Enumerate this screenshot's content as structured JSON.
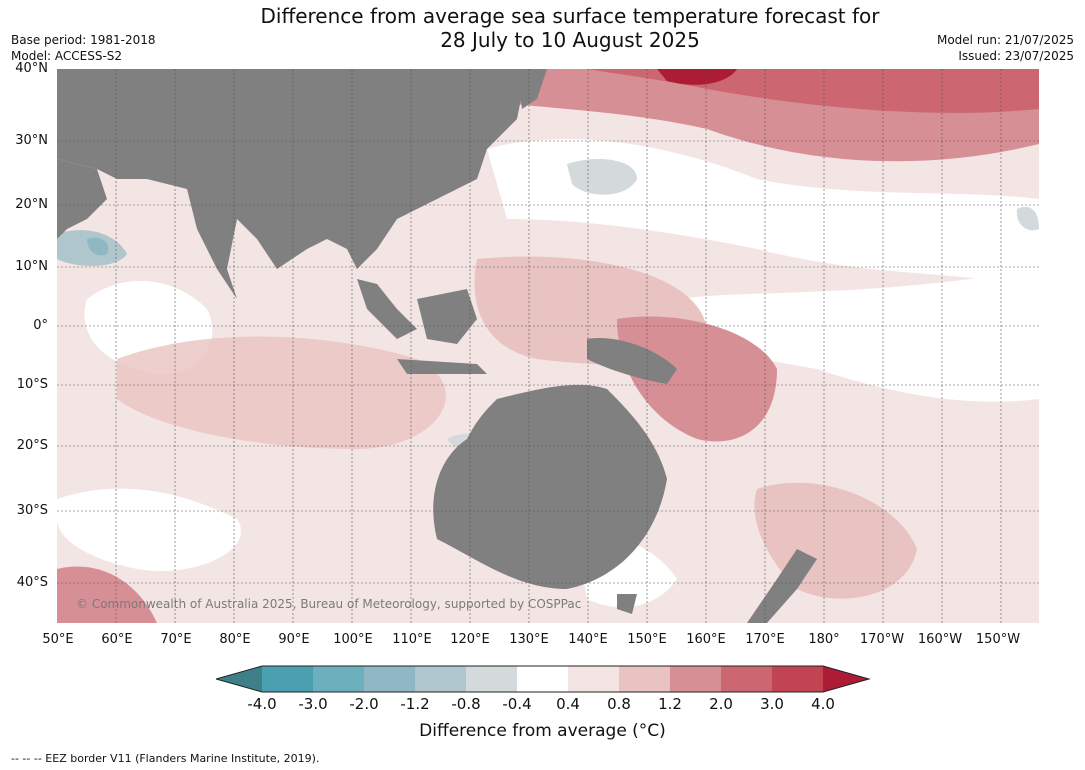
{
  "title_line1": "Difference from average sea surface temperature forecast for",
  "title_line2": "28 July to 10 August 2025",
  "base_period": "Base period: 1981-2018",
  "model": "Model: ACCESS-S2",
  "model_run": "Model run: 21/07/2025",
  "issued": "Issued: 23/07/2025",
  "copyright": "© Commonwealth of Australia 2025, Bureau of Meteorology, supported by COSPPac",
  "lat_labels": [
    "40°N",
    "30°N",
    "20°N",
    "10°N",
    "0°",
    "10°S",
    "20°S",
    "30°S",
    "40°S"
  ],
  "lon_labels": [
    "50°E",
    "60°E",
    "70°E",
    "80°E",
    "90°E",
    "100°E",
    "110°E",
    "120°E",
    "130°E",
    "140°E",
    "150°E",
    "160°E",
    "170°E",
    "180°",
    "170°W",
    "160°W",
    "150°W"
  ],
  "colorbar": {
    "label": "Difference from average (°C)",
    "ticks": [
      "-4.0",
      "-3.0",
      "-2.0",
      "-1.2",
      "-0.8",
      "-0.4",
      "0.4",
      "0.8",
      "1.2",
      "2.0",
      "3.0",
      "4.0"
    ],
    "colors": [
      "#3e7f88",
      "#4a9fb0",
      "#6db0bd",
      "#90b8c4",
      "#afc6cc",
      "#d4d9dc",
      "#ffffff",
      "#f4e5e5",
      "#e8c3c1",
      "#d78f96",
      "#cc6670",
      "#c24452",
      "#ad1c35"
    ]
  },
  "map_colors": {
    "land": "#808080",
    "grid": "#555555"
  },
  "footer": "--  --  -- EEZ border V11 (Flanders Marine Institute, 2019)."
}
